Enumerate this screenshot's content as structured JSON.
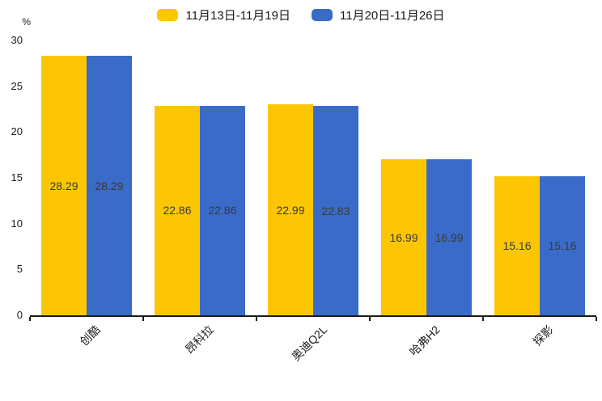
{
  "chart_data": {
    "type": "bar",
    "title": "",
    "xlabel": "",
    "ylabel": "%",
    "categories": [
      "创酷",
      "昂科拉",
      "奥迪Q2L",
      "哈弗H2",
      "探影"
    ],
    "series": [
      {
        "name": "11月13日-11月19日",
        "color": "#FCC605",
        "values": [
          28.29,
          22.86,
          22.99,
          16.99,
          15.16
        ]
      },
      {
        "name": "11月20日-11月26日",
        "color": "#3A6BC9",
        "values": [
          28.29,
          22.86,
          22.83,
          16.99,
          15.16
        ]
      }
    ],
    "ylim": [
      0,
      30
    ],
    "yticks": [
      0,
      5,
      10,
      15,
      20,
      25,
      30
    ],
    "grid": false,
    "legend_position": "top-center",
    "value_labels": "centered-inside-bars",
    "value_label_color": "#3a3a3a",
    "axis_color": "#1a1a1a"
  }
}
